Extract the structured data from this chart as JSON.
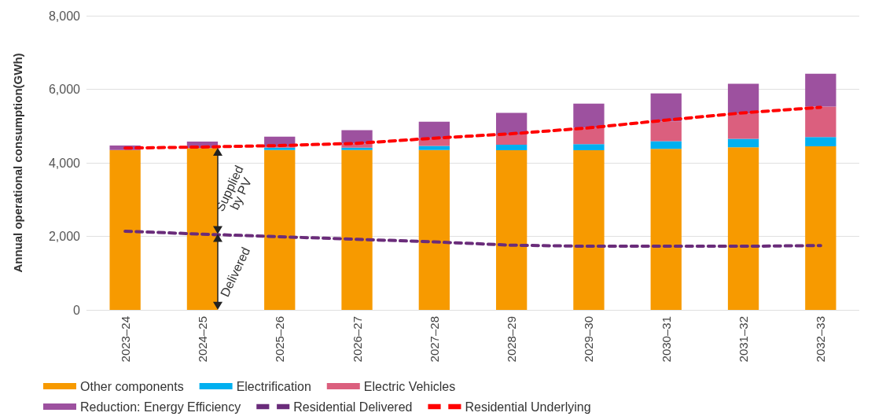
{
  "chart_data": {
    "type": "bar",
    "stacked": true,
    "ylabel": "Annual operational consumption(GWh)",
    "categories": [
      "2023–24",
      "2024–25",
      "2025–26",
      "2026–27",
      "2027–28",
      "2028–29",
      "2029–30",
      "2030–31",
      "2031–32",
      "2032–33"
    ],
    "series": [
      {
        "name": "Other components",
        "color": "#f79a00",
        "values": [
          4350,
          4400,
          4350,
          4350,
          4350,
          4340,
          4340,
          4380,
          4420,
          4450
        ]
      },
      {
        "name": "Electrification",
        "color": "#00b0f0",
        "values": [
          0,
          0,
          60,
          60,
          110,
          150,
          170,
          210,
          230,
          250
        ]
      },
      {
        "name": "Electric Vehicles",
        "color": "#db5f7e",
        "values": [
          0,
          0,
          40,
          120,
          210,
          280,
          440,
          540,
          690,
          830
        ]
      },
      {
        "name": "Reduction: Energy Efficiency",
        "color": "#9d519f",
        "values": [
          120,
          180,
          260,
          360,
          450,
          590,
          660,
          760,
          810,
          890
        ]
      },
      {
        "name": "Residential Delivered",
        "type": "line",
        "color": "#6a2c7a",
        "line_style": "dashed",
        "values": [
          2140,
          2060,
          1990,
          1920,
          1850,
          1760,
          1730,
          1730,
          1730,
          1750
        ]
      },
      {
        "name": "Residential Underlying",
        "type": "line",
        "color": "#ff0000",
        "line_style": "dashed",
        "values": [
          4400,
          4430,
          4470,
          4530,
          4670,
          4790,
          4950,
          5160,
          5360,
          5510
        ]
      }
    ],
    "ylim": [
      0,
      8000
    ],
    "yticks": [
      {
        "value": 0,
        "label": "0"
      },
      {
        "value": 2000,
        "label": "2,000"
      },
      {
        "value": 4000,
        "label": "4,000"
      },
      {
        "value": 6000,
        "label": "6,000"
      },
      {
        "value": 8000,
        "label": "8,000"
      }
    ],
    "grid": "y",
    "legend": "bottom",
    "marker": "none",
    "annotations": [
      "Supplied by PV",
      "Delivered"
    ]
  }
}
